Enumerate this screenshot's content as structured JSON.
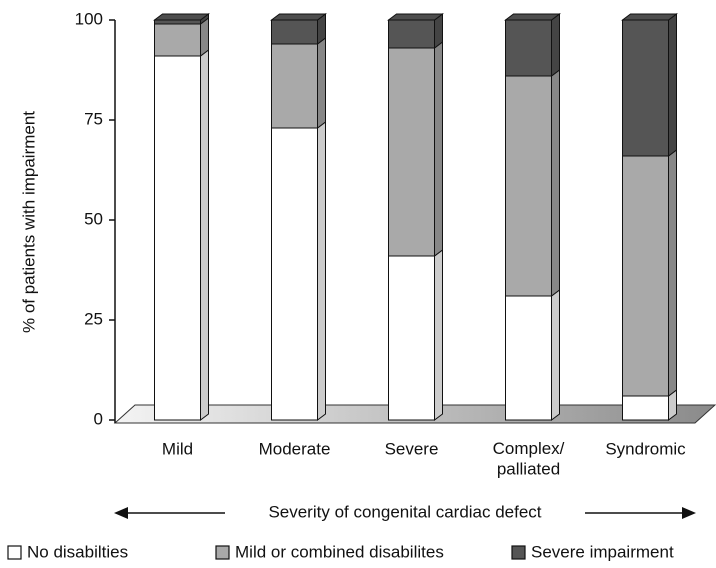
{
  "chart_data": {
    "type": "stacked_bar_3d",
    "y_label": "% of patients with impairment",
    "x_label": "Severity of congenital cardiac defect",
    "categories": [
      "Mild",
      "Moderate",
      "Severe",
      "Complex/\npalliated",
      "Syndromic"
    ],
    "series": [
      {
        "name": "No disabilties",
        "color": "#ffffff",
        "values": [
          91,
          73,
          41,
          31,
          6
        ]
      },
      {
        "name": "Mild or combined disabilites",
        "color": "#a9a9a9",
        "values": [
          8,
          21,
          52,
          55,
          60
        ]
      },
      {
        "name": "Severe impairment",
        "color": "#555555",
        "values": [
          1,
          6,
          7,
          14,
          34
        ]
      }
    ],
    "ylim": [
      0,
      100
    ],
    "yticks": [
      0,
      25,
      50,
      75,
      100
    ],
    "legend": "bottom"
  }
}
